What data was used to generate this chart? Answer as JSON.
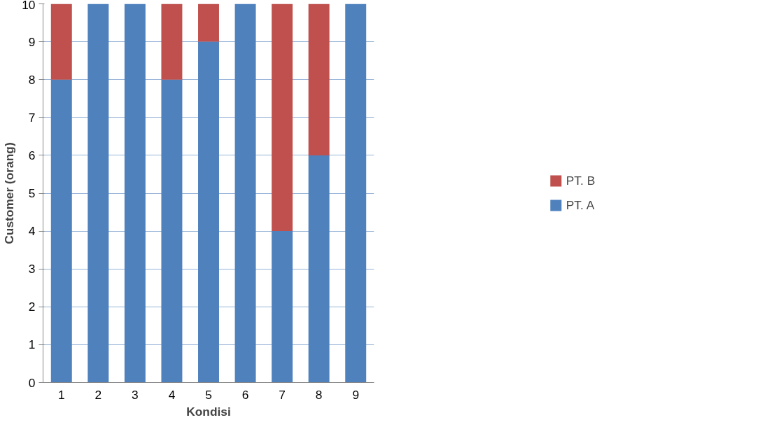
{
  "chart_data": {
    "type": "bar",
    "stacked": true,
    "xlabel": "Kondisi",
    "ylabel": "Customer (orang)",
    "categories": [
      "1",
      "2",
      "3",
      "4",
      "5",
      "6",
      "7",
      "8",
      "9"
    ],
    "series": [
      {
        "name": "PT. A",
        "color": "#4f81bd",
        "values": [
          8,
          10,
          10,
          8,
          9,
          10,
          4,
          6,
          10
        ]
      },
      {
        "name": "PT. B",
        "color": "#c0504d",
        "values": [
          2,
          0,
          0,
          2,
          1,
          0,
          6,
          4,
          0
        ]
      }
    ],
    "ylim": [
      0,
      10
    ],
    "yticks": [
      0,
      1,
      2,
      3,
      4,
      5,
      6,
      7,
      8,
      9,
      10
    ],
    "grid": "y",
    "legend": "right"
  }
}
